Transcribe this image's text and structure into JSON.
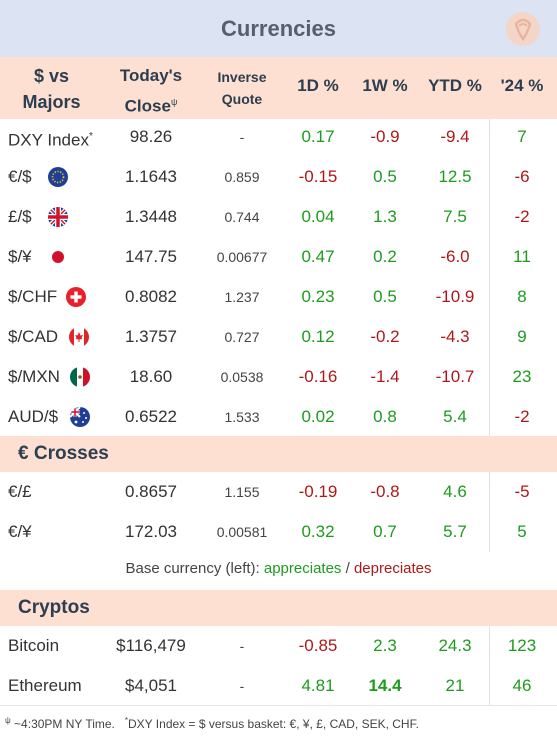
{
  "title": "Currencies",
  "headers": {
    "pair_l1": "$ vs",
    "pair_l2": "Majors",
    "close_l1": "Today's",
    "close_l2": "Close",
    "close_sup": "ψ",
    "inv_l1": "Inverse",
    "inv_l2": "Quote",
    "d1": "1D %",
    "w1": "1W %",
    "ytd": "YTD %",
    "y24": "'24 %"
  },
  "majors": [
    {
      "label": "DXY Index",
      "sup": "*",
      "close": "98.26",
      "inverse": "-",
      "d1": "0.17",
      "w1": "-0.9",
      "ytd": "-9.4",
      "y24": "7",
      "flag": ""
    },
    {
      "label": "€/$",
      "sup": "",
      "close": "1.1643",
      "inverse": "0.859",
      "d1": "-0.15",
      "w1": "0.5",
      "ytd": "12.5",
      "y24": "-6",
      "flag": "eu-flag-icon"
    },
    {
      "label": "£/$",
      "sup": "",
      "close": "1.3448",
      "inverse": "0.744",
      "d1": "0.04",
      "w1": "1.3",
      "ytd": "7.5",
      "y24": "-2",
      "flag": "uk-flag-icon"
    },
    {
      "label": "$/¥",
      "sup": "",
      "close": "147.75",
      "inverse": "0.00677",
      "d1": "0.47",
      "w1": "0.2",
      "ytd": "-6.0",
      "y24": "11",
      "flag": "japan-flag-icon"
    },
    {
      "label": "$/CHF",
      "sup": "",
      "close": "0.8082",
      "inverse": "1.237",
      "d1": "0.23",
      "w1": "0.5",
      "ytd": "-10.9",
      "y24": "8",
      "flag": "swiss-flag-icon"
    },
    {
      "label": "$/CAD",
      "sup": "",
      "close": "1.3757",
      "inverse": "0.727",
      "d1": "0.12",
      "w1": "-0.2",
      "ytd": "-4.3",
      "y24": "9",
      "flag": "canada-flag-icon"
    },
    {
      "label": "$/MXN",
      "sup": "",
      "close": "18.60",
      "inverse": "0.0538",
      "d1": "-0.16",
      "w1": "-1.4",
      "ytd": "-10.7",
      "y24": "23",
      "flag": "mexico-flag-icon"
    },
    {
      "label": "AUD/$",
      "sup": "",
      "close": "0.6522",
      "inverse": "1.533",
      "d1": "0.02",
      "w1": "0.8",
      "ytd": "5.4",
      "y24": "-2",
      "flag": "australia-flag-icon"
    }
  ],
  "crosses_title": "€ Crosses",
  "crosses": [
    {
      "label": "€/£",
      "close": "0.8657",
      "inverse": "1.155",
      "d1": "-0.19",
      "w1": "-0.8",
      "ytd": "4.6",
      "y24": "-5"
    },
    {
      "label": "€/¥",
      "close": "172.03",
      "inverse": "0.00581",
      "d1": "0.32",
      "w1": "0.7",
      "ytd": "5.7",
      "y24": "5"
    }
  ],
  "legend": {
    "prefix": "Base currency (left):",
    "appreciates": "appreciates",
    "slash": "/",
    "depreciates": "depreciates"
  },
  "cryptos_title": "Cryptos",
  "cryptos": [
    {
      "label": "Bitcoin",
      "close": "$116,479",
      "inverse": "-",
      "d1": "-0.85",
      "w1": "2.3",
      "ytd": "24.3",
      "y24": "123",
      "bold_w1": false
    },
    {
      "label": "Ethereum",
      "close": "$4,051",
      "inverse": "-",
      "d1": "4.81",
      "w1": "14.4",
      "ytd": "21",
      "y24": "46",
      "bold_w1": true
    }
  ],
  "footnote": {
    "sym1": "ψ",
    "text1": "~4:30PM NY Time.",
    "sym2": "*",
    "text2": "DXY Index = $ versus basket: €, ¥, £, CAD, SEK, CHF."
  },
  "colors": {
    "positive": "#1e9b1e",
    "negative": "#b01818",
    "header_bg": "#fde0d2",
    "title_bg": "#dce3f3"
  }
}
